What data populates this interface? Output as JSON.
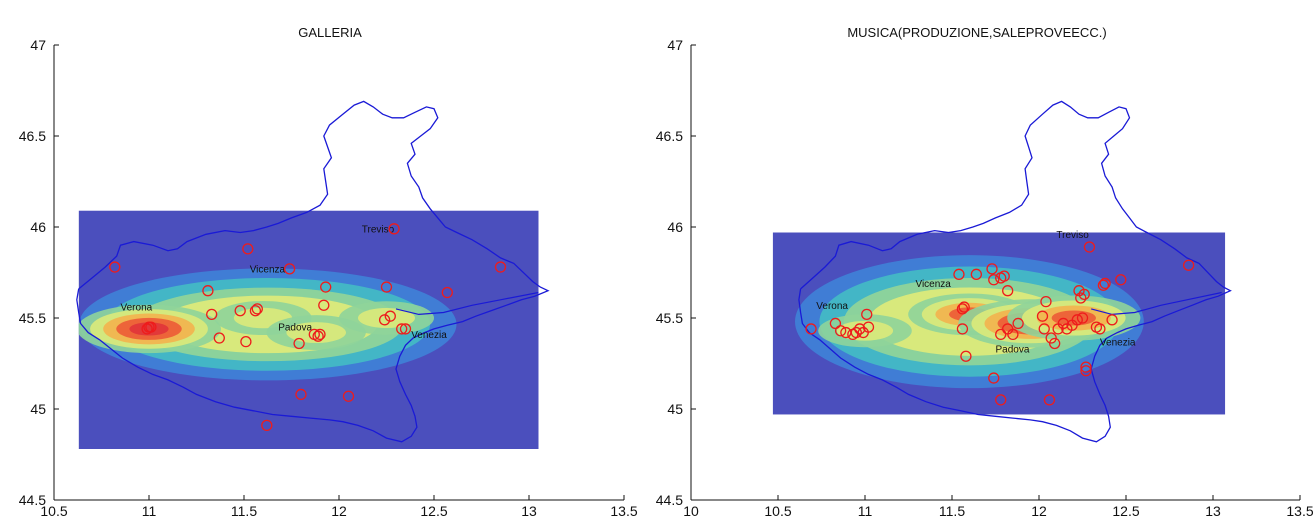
{
  "chart_data": [
    {
      "type": "scatter",
      "title": "GALLERIA",
      "xlabel": "",
      "ylabel": "",
      "xlim": [
        10.5,
        13.5
      ],
      "ylim": [
        44.5,
        47
      ],
      "xticks": [
        "10.5",
        "11",
        "11.5",
        "12",
        "12.5",
        "13",
        "13.5"
      ],
      "yticks": [
        "44.5",
        "45",
        "45.5",
        "46",
        "46.5",
        "47"
      ],
      "density_extent": {
        "x": [
          10.63,
          13.05
        ],
        "y": [
          44.78,
          46.09
        ]
      },
      "hotspots": [
        {
          "x": 11.0,
          "y": 45.44,
          "weight": 1.0
        },
        {
          "x": 11.6,
          "y": 45.5,
          "weight": 0.35
        },
        {
          "x": 11.88,
          "y": 45.42,
          "weight": 0.38
        },
        {
          "x": 12.25,
          "y": 45.5,
          "weight": 0.32
        }
      ],
      "cities": [
        {
          "name": "Verona",
          "x": 10.85,
          "y": 45.54
        },
        {
          "name": "Vicenza",
          "x": 11.53,
          "y": 45.75
        },
        {
          "name": "Padova",
          "x": 11.68,
          "y": 45.43
        },
        {
          "name": "Treviso",
          "x": 12.12,
          "y": 45.97
        },
        {
          "name": "Venezia",
          "x": 12.38,
          "y": 45.39
        }
      ],
      "points": [
        {
          "x": 10.82,
          "y": 45.78
        },
        {
          "x": 11.0,
          "y": 45.45
        },
        {
          "x": 10.99,
          "y": 45.44
        },
        {
          "x": 11.01,
          "y": 45.45
        },
        {
          "x": 11.31,
          "y": 45.65
        },
        {
          "x": 11.33,
          "y": 45.52
        },
        {
          "x": 11.37,
          "y": 45.39
        },
        {
          "x": 11.52,
          "y": 45.88
        },
        {
          "x": 11.48,
          "y": 45.54
        },
        {
          "x": 11.57,
          "y": 45.55
        },
        {
          "x": 11.56,
          "y": 45.54
        },
        {
          "x": 11.51,
          "y": 45.37
        },
        {
          "x": 11.74,
          "y": 45.77
        },
        {
          "x": 11.93,
          "y": 45.67
        },
        {
          "x": 11.92,
          "y": 45.57
        },
        {
          "x": 11.79,
          "y": 45.36
        },
        {
          "x": 11.87,
          "y": 45.41
        },
        {
          "x": 11.9,
          "y": 45.41
        },
        {
          "x": 11.89,
          "y": 45.4
        },
        {
          "x": 11.8,
          "y": 45.08
        },
        {
          "x": 11.62,
          "y": 44.91
        },
        {
          "x": 12.05,
          "y": 45.07
        },
        {
          "x": 12.25,
          "y": 45.67
        },
        {
          "x": 12.24,
          "y": 45.49
        },
        {
          "x": 12.27,
          "y": 45.51
        },
        {
          "x": 12.33,
          "y": 45.44
        },
        {
          "x": 12.35,
          "y": 45.44
        },
        {
          "x": 12.29,
          "y": 45.99
        },
        {
          "x": 12.57,
          "y": 45.64
        },
        {
          "x": 12.85,
          "y": 45.78
        }
      ]
    },
    {
      "type": "scatter",
      "title": "MUSICA(PRODUZIONE,SALEPROVEECC.)",
      "xlabel": "",
      "ylabel": "",
      "xlim": [
        10,
        13.5
      ],
      "ylim": [
        44.5,
        47
      ],
      "xticks": [
        "10",
        "10.5",
        "11",
        "11.5",
        "12",
        "12.5",
        "13",
        "13.5"
      ],
      "yticks": [
        "44.5",
        "45",
        "45.5",
        "46",
        "46.5",
        "47"
      ],
      "density_extent": {
        "x": [
          10.47,
          13.07
        ],
        "y": [
          44.97,
          45.97
        ]
      },
      "hotspots": [
        {
          "x": 11.0,
          "y": 45.43,
          "weight": 0.3
        },
        {
          "x": 11.6,
          "y": 45.52,
          "weight": 0.7
        },
        {
          "x": 11.95,
          "y": 45.47,
          "weight": 1.0
        },
        {
          "x": 12.2,
          "y": 45.5,
          "weight": 0.85
        }
      ],
      "cities": [
        {
          "name": "Verona",
          "x": 10.72,
          "y": 45.55
        },
        {
          "name": "Vicenza",
          "x": 11.29,
          "y": 45.67
        },
        {
          "name": "Padova",
          "x": 11.75,
          "y": 45.31
        },
        {
          "name": "Treviso",
          "x": 12.1,
          "y": 45.94
        },
        {
          "name": "Venezia",
          "x": 12.35,
          "y": 45.35
        }
      ],
      "points": [
        {
          "x": 10.69,
          "y": 45.44
        },
        {
          "x": 10.83,
          "y": 45.47
        },
        {
          "x": 10.86,
          "y": 45.43
        },
        {
          "x": 10.89,
          "y": 45.42
        },
        {
          "x": 10.93,
          "y": 45.41
        },
        {
          "x": 10.95,
          "y": 45.42
        },
        {
          "x": 10.97,
          "y": 45.44
        },
        {
          "x": 10.99,
          "y": 45.42
        },
        {
          "x": 11.02,
          "y": 45.45
        },
        {
          "x": 11.01,
          "y": 45.52
        },
        {
          "x": 11.54,
          "y": 45.74
        },
        {
          "x": 11.56,
          "y": 45.55
        },
        {
          "x": 11.57,
          "y": 45.56
        },
        {
          "x": 11.56,
          "y": 45.44
        },
        {
          "x": 11.58,
          "y": 45.29
        },
        {
          "x": 11.64,
          "y": 45.74
        },
        {
          "x": 11.73,
          "y": 45.77
        },
        {
          "x": 11.74,
          "y": 45.71
        },
        {
          "x": 11.78,
          "y": 45.72
        },
        {
          "x": 11.8,
          "y": 45.73
        },
        {
          "x": 11.82,
          "y": 45.65
        },
        {
          "x": 11.74,
          "y": 45.17
        },
        {
          "x": 11.78,
          "y": 45.05
        },
        {
          "x": 11.78,
          "y": 45.41
        },
        {
          "x": 11.82,
          "y": 45.44
        },
        {
          "x": 11.85,
          "y": 45.41
        },
        {
          "x": 11.88,
          "y": 45.47
        },
        {
          "x": 12.02,
          "y": 45.51
        },
        {
          "x": 12.04,
          "y": 45.59
        },
        {
          "x": 12.03,
          "y": 45.44
        },
        {
          "x": 12.07,
          "y": 45.39
        },
        {
          "x": 12.09,
          "y": 45.36
        },
        {
          "x": 12.11,
          "y": 45.44
        },
        {
          "x": 12.14,
          "y": 45.47
        },
        {
          "x": 12.16,
          "y": 45.44
        },
        {
          "x": 12.19,
          "y": 45.46
        },
        {
          "x": 12.22,
          "y": 45.49
        },
        {
          "x": 12.25,
          "y": 45.5
        },
        {
          "x": 12.23,
          "y": 45.65
        },
        {
          "x": 12.26,
          "y": 45.63
        },
        {
          "x": 12.24,
          "y": 45.61
        },
        {
          "x": 12.27,
          "y": 45.23
        },
        {
          "x": 12.27,
          "y": 45.21
        },
        {
          "x": 12.06,
          "y": 45.05
        },
        {
          "x": 12.29,
          "y": 45.89
        },
        {
          "x": 12.33,
          "y": 45.45
        },
        {
          "x": 12.35,
          "y": 45.44
        },
        {
          "x": 12.37,
          "y": 45.68
        },
        {
          "x": 12.38,
          "y": 45.69
        },
        {
          "x": 12.42,
          "y": 45.49
        },
        {
          "x": 12.47,
          "y": 45.71
        },
        {
          "x": 12.86,
          "y": 45.79
        }
      ]
    }
  ],
  "boundary": [
    [
      10.63,
      45.66
    ],
    [
      10.7,
      45.72
    ],
    [
      10.77,
      45.78
    ],
    [
      10.83,
      45.84
    ],
    [
      10.85,
      45.9
    ],
    [
      10.92,
      45.92
    ],
    [
      11.02,
      45.9
    ],
    [
      11.1,
      45.87
    ],
    [
      11.15,
      45.88
    ],
    [
      11.2,
      45.92
    ],
    [
      11.3,
      45.96
    ],
    [
      11.4,
      45.98
    ],
    [
      11.48,
      45.97
    ],
    [
      11.55,
      45.98
    ],
    [
      11.62,
      46.0
    ],
    [
      11.68,
      46.02
    ],
    [
      11.75,
      46.05
    ],
    [
      11.83,
      46.08
    ],
    [
      11.9,
      46.12
    ],
    [
      11.94,
      46.18
    ],
    [
      11.93,
      46.25
    ],
    [
      11.92,
      46.32
    ],
    [
      11.96,
      46.38
    ],
    [
      11.94,
      46.44
    ],
    [
      11.92,
      46.5
    ],
    [
      11.95,
      46.56
    ],
    [
      12.02,
      46.62
    ],
    [
      12.08,
      46.67
    ],
    [
      12.13,
      46.69
    ],
    [
      12.18,
      46.66
    ],
    [
      12.23,
      46.62
    ],
    [
      12.28,
      46.6
    ],
    [
      12.34,
      46.6
    ],
    [
      12.4,
      46.63
    ],
    [
      12.46,
      46.66
    ],
    [
      12.5,
      46.65
    ],
    [
      12.52,
      46.6
    ],
    [
      12.48,
      46.54
    ],
    [
      12.43,
      46.5
    ],
    [
      12.38,
      46.46
    ],
    [
      12.4,
      46.4
    ],
    [
      12.36,
      46.35
    ],
    [
      12.38,
      46.28
    ],
    [
      12.42,
      46.22
    ],
    [
      12.44,
      46.16
    ],
    [
      12.48,
      46.1
    ],
    [
      12.52,
      46.05
    ],
    [
      12.56,
      46.0
    ],
    [
      12.62,
      45.97
    ],
    [
      12.7,
      45.93
    ],
    [
      12.78,
      45.88
    ],
    [
      12.85,
      45.83
    ],
    [
      12.92,
      45.8
    ],
    [
      12.98,
      45.74
    ],
    [
      13.02,
      45.7
    ],
    [
      13.06,
      45.67
    ],
    [
      13.1,
      45.65
    ],
    [
      13.03,
      45.62
    ],
    [
      12.96,
      45.6
    ],
    [
      12.88,
      45.57
    ],
    [
      12.8,
      45.54
    ],
    [
      12.72,
      45.51
    ],
    [
      12.65,
      45.48
    ],
    [
      12.57,
      45.46
    ],
    [
      12.5,
      45.44
    ],
    [
      12.45,
      45.42
    ],
    [
      12.39,
      45.39
    ],
    [
      12.35,
      45.35
    ],
    [
      12.32,
      45.29
    ],
    [
      12.3,
      45.22
    ],
    [
      12.32,
      45.15
    ],
    [
      12.35,
      45.08
    ],
    [
      12.38,
      45.02
    ],
    [
      12.4,
      44.96
    ],
    [
      12.41,
      44.9
    ],
    [
      12.38,
      44.85
    ],
    [
      12.33,
      44.82
    ],
    [
      12.25,
      44.84
    ],
    [
      12.18,
      44.88
    ],
    [
      12.1,
      44.91
    ],
    [
      12.02,
      44.93
    ],
    [
      11.95,
      44.94
    ],
    [
      11.85,
      44.95
    ],
    [
      11.75,
      44.96
    ],
    [
      11.65,
      44.97
    ],
    [
      11.55,
      44.99
    ],
    [
      11.45,
      45.01
    ],
    [
      11.35,
      45.04
    ],
    [
      11.25,
      45.08
    ],
    [
      11.18,
      45.12
    ],
    [
      11.1,
      45.16
    ],
    [
      11.02,
      45.19
    ],
    [
      10.94,
      45.23
    ],
    [
      10.86,
      45.28
    ],
    [
      10.8,
      45.33
    ],
    [
      10.74,
      45.38
    ],
    [
      10.68,
      45.42
    ],
    [
      10.64,
      45.47
    ],
    [
      10.63,
      45.53
    ],
    [
      10.62,
      45.6
    ],
    [
      10.63,
      45.66
    ]
  ]
}
